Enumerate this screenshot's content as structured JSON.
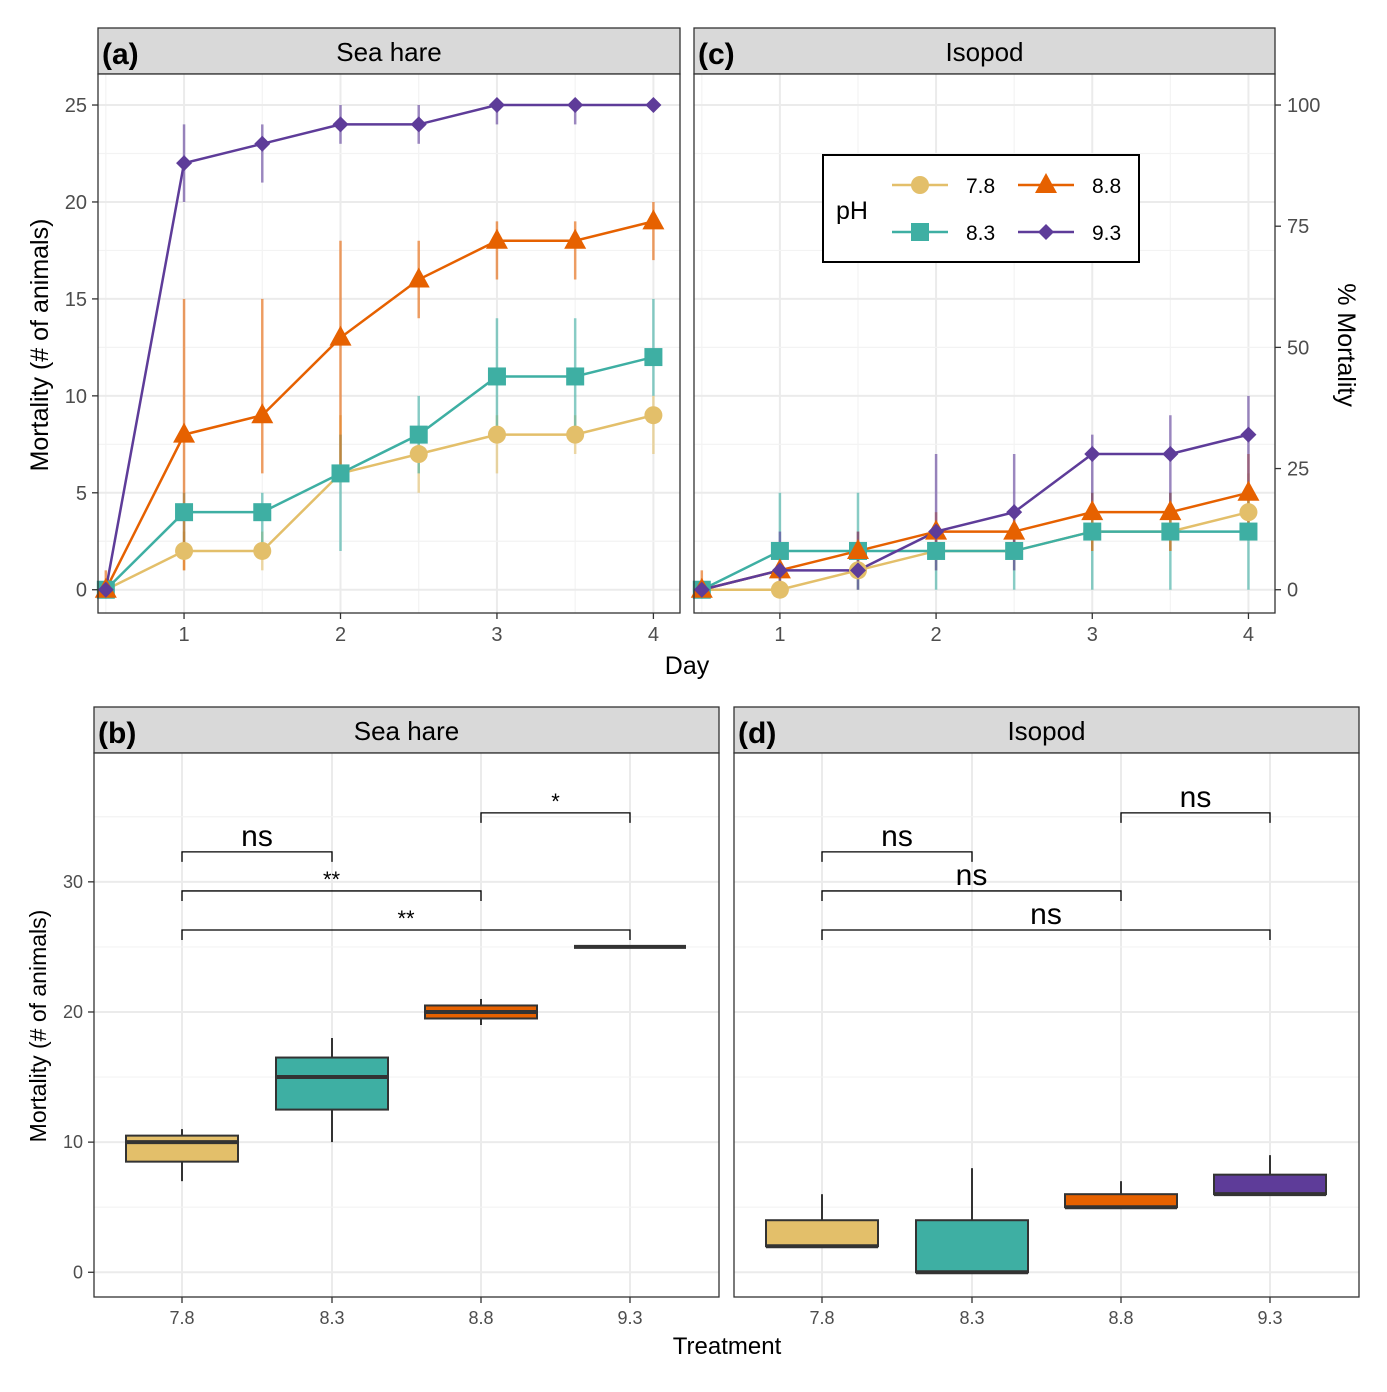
{
  "colors": {
    "7.8": "#E3BF6A",
    "8.3": "#3EAFA3",
    "8.8": "#E66100",
    "9.3": "#5E3C99"
  },
  "legend": {
    "title": "pH",
    "entries": [
      "7.8",
      "8.3",
      "8.8",
      "9.3"
    ],
    "shapes": {
      "7.8": "circle",
      "8.3": "square",
      "8.8": "triangle",
      "9.3": "diamond"
    }
  },
  "shared_labels": {
    "top_xlabel": "Day",
    "top_ylabel": "Mortality (# of animals)",
    "top_y2label": "% Mortality",
    "bottom_xlabel": "Treatment",
    "bottom_ylabel": "Mortality (# of animals)"
  },
  "chart_data": [
    {
      "panel": "(a)",
      "title": "Sea hare",
      "type": "line",
      "x": [
        0.5,
        1,
        1.5,
        2,
        2.5,
        3,
        3.5,
        4
      ],
      "xticks": [
        1,
        2,
        3,
        4
      ],
      "xlim": [
        0.45,
        4.17
      ],
      "yticks": [
        0,
        5,
        10,
        15,
        20,
        25
      ],
      "ylim": [
        -1.2,
        26.6
      ],
      "grid": true,
      "series": [
        {
          "name": "7.8",
          "values": [
            0,
            2,
            2,
            6,
            7,
            8,
            8,
            9
          ],
          "err": [
            [
              0,
              0
            ],
            [
              1,
              3
            ],
            [
              1,
              3
            ],
            [
              6,
              9
            ],
            [
              5,
              8
            ],
            [
              6,
              9
            ],
            [
              7,
              9
            ],
            [
              7,
              10
            ]
          ]
        },
        {
          "name": "8.3",
          "values": [
            0,
            4,
            4,
            6,
            8,
            11,
            11,
            12
          ],
          "err": [
            [
              0,
              0
            ],
            [
              2,
              5
            ],
            [
              2,
              5
            ],
            [
              2,
              8
            ],
            [
              6,
              10
            ],
            [
              8,
              14
            ],
            [
              8,
              14
            ],
            [
              10,
              15
            ]
          ]
        },
        {
          "name": "8.8",
          "values": [
            0,
            8,
            9,
            13,
            16,
            18,
            18,
            19
          ],
          "err": [
            [
              0,
              1
            ],
            [
              1,
              15
            ],
            [
              6,
              15
            ],
            [
              6,
              18
            ],
            [
              14,
              18
            ],
            [
              16,
              19
            ],
            [
              16,
              19
            ],
            [
              17,
              20
            ]
          ]
        },
        {
          "name": "9.3",
          "values": [
            0,
            22,
            23,
            24,
            24,
            25,
            25,
            25
          ],
          "err": [
            [
              0,
              0
            ],
            [
              20,
              24
            ],
            [
              21,
              24
            ],
            [
              23,
              25
            ],
            [
              23,
              25
            ],
            [
              24,
              25
            ],
            [
              24,
              25
            ],
            [
              25,
              25
            ]
          ]
        }
      ]
    },
    {
      "panel": "(c)",
      "title": "Isopod",
      "type": "line",
      "x": [
        0.5,
        1,
        1.5,
        2,
        2.5,
        3,
        3.5,
        4
      ],
      "xticks": [
        1,
        2,
        3,
        4
      ],
      "xlim": [
        0.45,
        4.17
      ],
      "y2ticks": [
        0,
        25,
        50,
        75,
        100
      ],
      "ylim": [
        -1.2,
        26.6
      ],
      "grid": true,
      "legend_position": "top-center",
      "series": [
        {
          "name": "7.8",
          "values": [
            0,
            0,
            1,
            2,
            2,
            3,
            3,
            4
          ],
          "err": [
            [
              0,
              0
            ],
            [
              0,
              0
            ],
            [
              0,
              2
            ],
            [
              1,
              3
            ],
            [
              1,
              3
            ],
            [
              2,
              4
            ],
            [
              2,
              4
            ],
            [
              3,
              6
            ]
          ]
        },
        {
          "name": "8.3",
          "values": [
            0,
            2,
            2,
            2,
            2,
            3,
            3,
            3
          ],
          "err": [
            [
              0,
              0
            ],
            [
              0,
              5
            ],
            [
              0,
              5
            ],
            [
              0,
              3
            ],
            [
              0,
              3
            ],
            [
              0,
              5
            ],
            [
              0,
              5
            ],
            [
              0,
              5
            ]
          ]
        },
        {
          "name": "8.8",
          "values": [
            0,
            1,
            2,
            3,
            3,
            4,
            4,
            5
          ],
          "err": [
            [
              0,
              1
            ],
            [
              0,
              2
            ],
            [
              1,
              3
            ],
            [
              2,
              4
            ],
            [
              2,
              4
            ],
            [
              2,
              5
            ],
            [
              2,
              5
            ],
            [
              3,
              7
            ]
          ]
        },
        {
          "name": "9.3",
          "values": [
            0,
            1,
            1,
            3,
            4,
            7,
            7,
            8
          ],
          "err": [
            [
              0,
              0
            ],
            [
              0,
              3
            ],
            [
              0,
              3
            ],
            [
              1,
              7
            ],
            [
              1,
              7
            ],
            [
              4,
              8
            ],
            [
              4,
              9
            ],
            [
              5,
              10
            ]
          ]
        }
      ]
    },
    {
      "panel": "(b)",
      "title": "Sea hare",
      "type": "box",
      "categories": [
        "7.8",
        "8.3",
        "8.8",
        "9.3"
      ],
      "yticks": [
        0,
        10,
        20,
        30
      ],
      "ylim": [
        -1.9,
        39.9
      ],
      "grid": true,
      "boxes": [
        {
          "min": 7,
          "q1": 8.5,
          "median": 10,
          "q3": 10.5,
          "max": 11
        },
        {
          "min": 10,
          "q1": 12.5,
          "median": 15,
          "q3": 16.5,
          "max": 18
        },
        {
          "min": 19,
          "q1": 19.5,
          "median": 20,
          "q3": 20.5,
          "max": 21
        },
        {
          "min": 25,
          "q1": 25,
          "median": 25,
          "q3": 25,
          "max": 25
        }
      ],
      "comparisons": [
        {
          "from": "7.8",
          "to": "8.3",
          "label": "ns",
          "y": 32.3
        },
        {
          "from": "7.8",
          "to": "8.8",
          "label": "**",
          "y": 29.3
        },
        {
          "from": "7.8",
          "to": "9.3",
          "label": "**",
          "y": 26.3
        },
        {
          "from": "8.8",
          "to": "9.3",
          "label": "*",
          "y": 35.3
        }
      ]
    },
    {
      "panel": "(d)",
      "title": "Isopod",
      "type": "box",
      "categories": [
        "7.8",
        "8.3",
        "8.8",
        "9.3"
      ],
      "ylim": [
        -1.9,
        39.9
      ],
      "grid": true,
      "boxes": [
        {
          "min": 2,
          "q1": 2,
          "median": 2,
          "q3": 4,
          "max": 6
        },
        {
          "min": 0,
          "q1": 0,
          "median": 0,
          "q3": 4,
          "max": 8
        },
        {
          "min": 5,
          "q1": 5,
          "median": 5,
          "q3": 6,
          "max": 7
        },
        {
          "min": 6,
          "q1": 6,
          "median": 6,
          "q3": 7.5,
          "max": 9
        }
      ],
      "comparisons": [
        {
          "from": "7.8",
          "to": "8.3",
          "label": "ns",
          "y": 32.3
        },
        {
          "from": "7.8",
          "to": "8.8",
          "label": "ns",
          "y": 29.3
        },
        {
          "from": "7.8",
          "to": "9.3",
          "label": "ns",
          "y": 26.3
        },
        {
          "from": "8.8",
          "to": "9.3",
          "label": "ns",
          "y": 35.3
        }
      ]
    }
  ]
}
